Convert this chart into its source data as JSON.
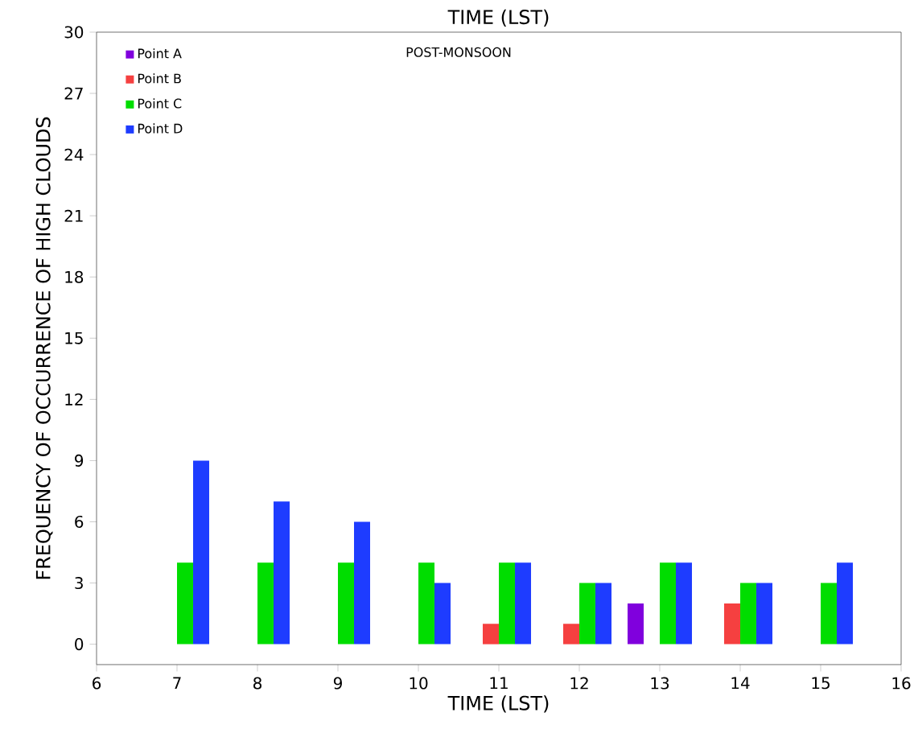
{
  "chart_data": {
    "type": "bar",
    "title": "TIME (LST)",
    "xlabel": "TIME (LST)",
    "ylabel": "FREQUENCY OF OCCURRENCE OF HIGH CLOUDS",
    "annotations": [
      "POST-MONSOON"
    ],
    "x": [
      7,
      8,
      9,
      10,
      11,
      12,
      13,
      14,
      15
    ],
    "series": [
      {
        "name": "Point A",
        "color": "#8000dd",
        "values": [
          0,
          0,
          0,
          0,
          0,
          0,
          2,
          0,
          0
        ]
      },
      {
        "name": "Point B",
        "color": "#f54040",
        "values": [
          0,
          0,
          0,
          0,
          1,
          1,
          0,
          2,
          0
        ]
      },
      {
        "name": "Point C",
        "color": "#00dd00",
        "values": [
          4,
          4,
          4,
          4,
          4,
          3,
          4,
          3,
          3
        ]
      },
      {
        "name": "Point D",
        "color": "#1e3cff",
        "values": [
          9,
          7,
          6,
          3,
          4,
          3,
          4,
          3,
          4
        ]
      }
    ],
    "xlim": [
      6,
      16
    ],
    "xticks": [
      6,
      7,
      8,
      9,
      10,
      11,
      12,
      13,
      14,
      15,
      16
    ],
    "ylim": [
      -1,
      30
    ],
    "yticks": [
      0,
      3,
      6,
      9,
      12,
      15,
      18,
      21,
      24,
      27,
      30
    ],
    "grid": false,
    "legend": "top left"
  }
}
